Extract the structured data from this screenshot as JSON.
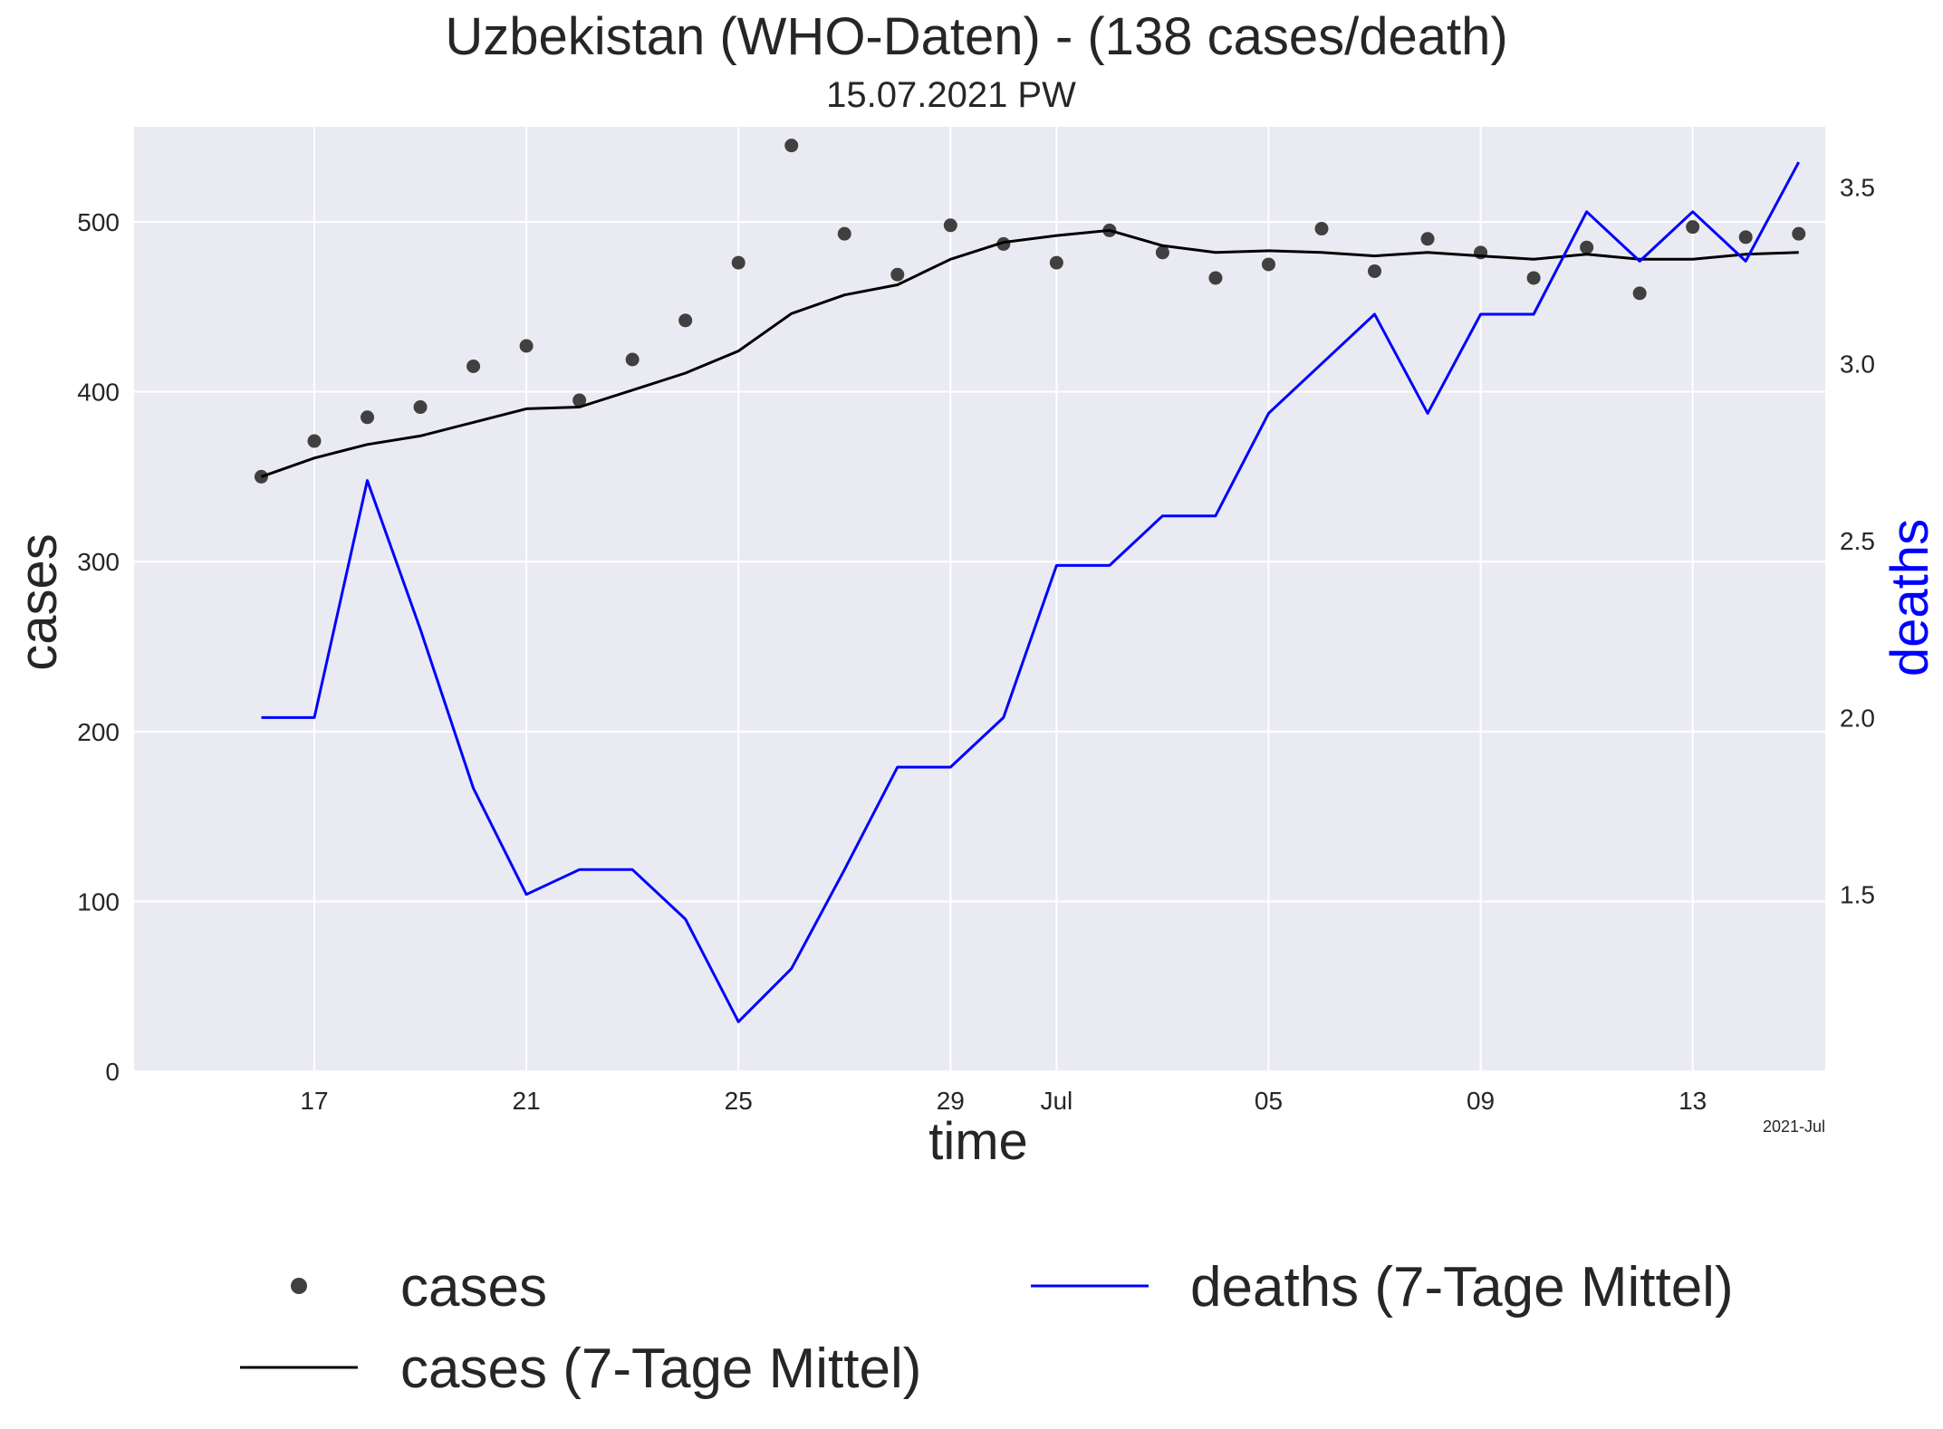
{
  "chart_data": {
    "type": "line",
    "title": "Uzbekistan (WHO-Daten) - (138 cases/death)",
    "subtitle": "15.07.2021 PW",
    "xlabel": "time",
    "ylabel": "cases",
    "y2label": "deaths",
    "x_offset_label": "2021-Jul",
    "grid": true,
    "x": [
      "2021-06-16",
      "2021-06-17",
      "2021-06-18",
      "2021-06-19",
      "2021-06-20",
      "2021-06-21",
      "2021-06-22",
      "2021-06-23",
      "2021-06-24",
      "2021-06-25",
      "2021-06-26",
      "2021-06-27",
      "2021-06-28",
      "2021-06-29",
      "2021-06-30",
      "2021-07-01",
      "2021-07-02",
      "2021-07-03",
      "2021-07-04",
      "2021-07-05",
      "2021-07-06",
      "2021-07-07",
      "2021-07-08",
      "2021-07-09",
      "2021-07-10",
      "2021-07-11",
      "2021-07-12",
      "2021-07-13",
      "2021-07-14",
      "2021-07-15"
    ],
    "xlim": [
      -2.4,
      29.5
    ],
    "ylim": [
      0,
      556
    ],
    "y2lim": [
      1.0,
      3.67
    ],
    "x_ticks": [
      {
        "index": 1,
        "label": "17"
      },
      {
        "index": 5,
        "label": "21"
      },
      {
        "index": 9,
        "label": "25"
      },
      {
        "index": 13,
        "label": "29"
      },
      {
        "index": 15,
        "label": "Jul"
      },
      {
        "index": 19,
        "label": "05"
      },
      {
        "index": 23,
        "label": "09"
      },
      {
        "index": 27,
        "label": "13"
      }
    ],
    "y_ticks": [
      0,
      100,
      200,
      300,
      400,
      500
    ],
    "y2_ticks": [
      "1.5",
      "2.0",
      "2.5",
      "3.0",
      "3.5"
    ],
    "series": [
      {
        "name": "cases",
        "axis": "left",
        "style": "scatter",
        "color": "#404040",
        "values": [
          350,
          371,
          385,
          391,
          415,
          427,
          395,
          419,
          442,
          476,
          545,
          493,
          469,
          498,
          487,
          476,
          495,
          482,
          467,
          475,
          496,
          471,
          490,
          482,
          467,
          485,
          458,
          497,
          491,
          493
        ]
      },
      {
        "name": "cases (7-Tage Mittel)",
        "axis": "left",
        "style": "line",
        "color": "#000000",
        "values": [
          350,
          361,
          369,
          374,
          382,
          390,
          391,
          401,
          411,
          424,
          446,
          457,
          463,
          478,
          488,
          492,
          495,
          486,
          482,
          483,
          482,
          480,
          482,
          480,
          478,
          481,
          478,
          478,
          481,
          482
        ]
      },
      {
        "name": "deaths (7-Tage Mittel)",
        "axis": "right",
        "style": "line",
        "color": "#0000ff",
        "values": [
          2.0,
          2.0,
          2.67,
          2.25,
          1.8,
          1.5,
          1.57,
          1.57,
          1.43,
          1.14,
          1.29,
          1.57,
          1.86,
          1.86,
          2.0,
          2.43,
          2.43,
          2.57,
          2.57,
          2.86,
          3.0,
          3.14,
          2.86,
          3.14,
          3.14,
          3.43,
          3.29,
          3.43,
          3.29,
          3.57
        ]
      }
    ],
    "legend": {
      "placement": "bottom",
      "entries": [
        "cases",
        "cases (7-Tage Mittel)",
        "deaths (7-Tage Mittel)"
      ]
    }
  }
}
